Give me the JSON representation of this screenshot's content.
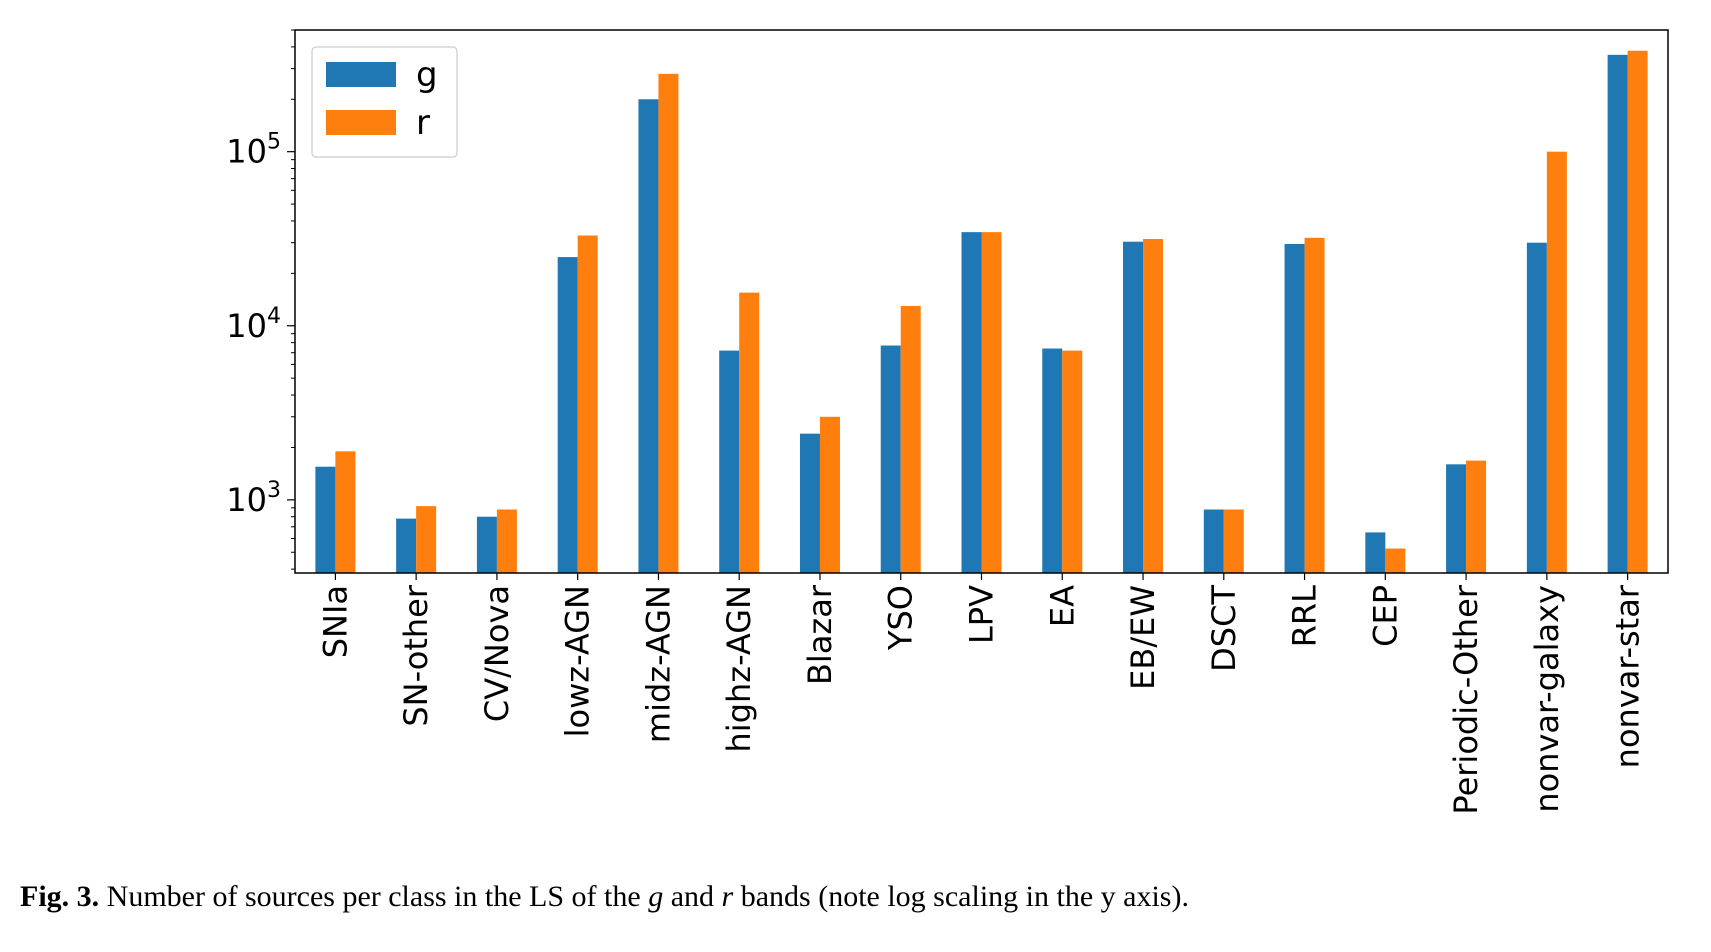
{
  "chart_data": {
    "type": "bar",
    "yscale": "log",
    "ylim": [
      380,
      500000
    ],
    "ytick_labels": [
      {
        "base": "10",
        "exp": "3",
        "value": 1000
      },
      {
        "base": "10",
        "exp": "4",
        "value": 10000
      },
      {
        "base": "10",
        "exp": "5",
        "value": 100000
      }
    ],
    "categories": [
      "SNIa",
      "SN-other",
      "CV/Nova",
      "lowz-AGN",
      "midz-AGN",
      "highz-AGN",
      "Blazar",
      "YSO",
      "LPV",
      "EA",
      "EB/EW",
      "DSCT",
      "RRL",
      "CEP",
      "Periodic-Other",
      "nonvar-galaxy",
      "nonvar-star"
    ],
    "series": [
      {
        "name": "g",
        "color": "#1f77b4",
        "values": [
          1550,
          780,
          800,
          24800,
          200000,
          7200,
          2400,
          7700,
          34500,
          7400,
          30400,
          880,
          29500,
          650,
          1600,
          30000,
          360000
        ]
      },
      {
        "name": "r",
        "color": "#ff7f0e",
        "values": [
          1900,
          920,
          880,
          33000,
          280000,
          15500,
          3000,
          13000,
          34500,
          7200,
          31500,
          880,
          32000,
          525,
          1680,
          100000,
          380000
        ]
      }
    ],
    "legend": "top-left",
    "grid": false
  },
  "caption": {
    "fig_label": "Fig. 3.",
    "text_1": " Number of sources per class in the LS of the ",
    "g": "g",
    "text_2": " and ",
    "r": "r",
    "text_3": " bands (note log scaling in the y axis)."
  }
}
